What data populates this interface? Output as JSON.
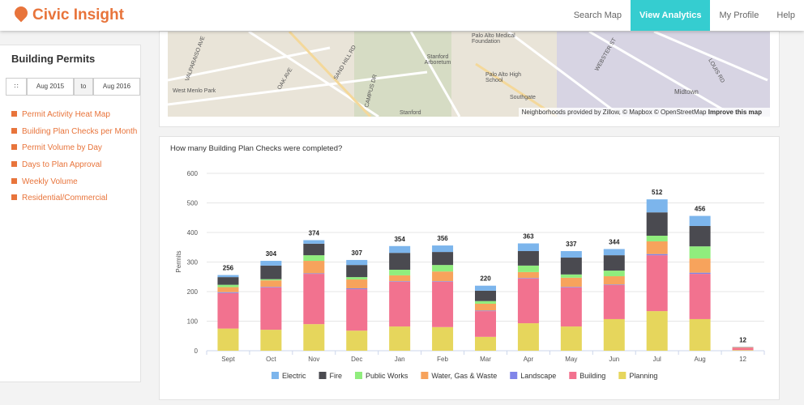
{
  "header": {
    "logo": "Civic Insight",
    "nav": [
      "Search Map",
      "View Analytics",
      "My Profile",
      "Help"
    ],
    "active": 1
  },
  "sidebar": {
    "title": "Building Permits",
    "date_from": "Aug 2015",
    "date_sep": "to",
    "date_to": "Aug 2016",
    "links": [
      "Permit Activity Heat Map",
      "Building Plan Checks per Month",
      "Permit Volume by Day",
      "Days to Plan Approval",
      "Weekly Volume",
      "Residential/Commercial"
    ]
  },
  "map": {
    "labels": [
      "VALPARAISO AVE",
      "West Menlo Park",
      "OAK AVE",
      "SAND HILL RD",
      "CAMPUS DR",
      "Stanford Arboretum",
      "Palo Alto Medical Foundation",
      "Palo Alto High School",
      "Southgate",
      "WEBSTER ST",
      "LOUIS RD",
      "Midtown",
      "Stanford"
    ],
    "attribution": "Neighborhoods provided by Zillow, © Mapbox © OpenStreetMap",
    "improve": "Improve this map"
  },
  "chart_data": {
    "type": "stacked_bar",
    "title": "How many Building Plan Checks were completed?",
    "ylabel": "Permits",
    "categories": [
      "Sept",
      "Oct",
      "Nov",
      "Dec",
      "Jan",
      "Feb",
      "Mar",
      "Apr",
      "May",
      "Jun",
      "Jul",
      "Aug",
      "12"
    ],
    "ylim": [
      0,
      600
    ],
    "yticks": [
      0,
      100,
      200,
      300,
      400,
      500,
      600
    ],
    "grid": true,
    "legend": "bottom",
    "series": [
      {
        "name": "Planning",
        "color": "#e6d65c",
        "values": [
          75,
          71,
          90,
          68,
          82,
          80,
          47,
          93,
          82,
          107,
          134,
          107,
          2
        ]
      },
      {
        "name": "Building",
        "color": "#f2728f",
        "values": [
          120,
          143,
          170,
          140,
          151,
          153,
          87,
          151,
          132,
          115,
          189,
          153,
          8
        ]
      },
      {
        "name": "Landscape",
        "color": "#8085e9",
        "values": [
          3,
          2,
          2,
          3,
          2,
          2,
          2,
          2,
          2,
          2,
          4,
          4,
          0
        ]
      },
      {
        "name": "Water, Gas & Waste",
        "color": "#f7a35c",
        "values": [
          17,
          22,
          42,
          30,
          20,
          33,
          23,
          20,
          31,
          28,
          43,
          48,
          1
        ]
      },
      {
        "name": "Public Works",
        "color": "#90ed7d",
        "values": [
          8,
          4,
          19,
          8,
          19,
          22,
          9,
          22,
          11,
          19,
          19,
          41,
          0
        ]
      },
      {
        "name": "Fire",
        "color": "#4a4a50",
        "values": [
          26,
          46,
          39,
          41,
          57,
          44,
          35,
          49,
          57,
          52,
          79,
          69,
          1
        ]
      },
      {
        "name": "Electric",
        "color": "#7cb5ec",
        "values": [
          7,
          16,
          12,
          17,
          23,
          22,
          17,
          26,
          22,
          21,
          44,
          34,
          0
        ]
      }
    ],
    "totals": [
      256,
      304,
      374,
      307,
      354,
      356,
      220,
      363,
      337,
      344,
      512,
      456,
      12
    ],
    "legend_order": [
      6,
      5,
      4,
      3,
      2,
      1,
      0
    ]
  }
}
